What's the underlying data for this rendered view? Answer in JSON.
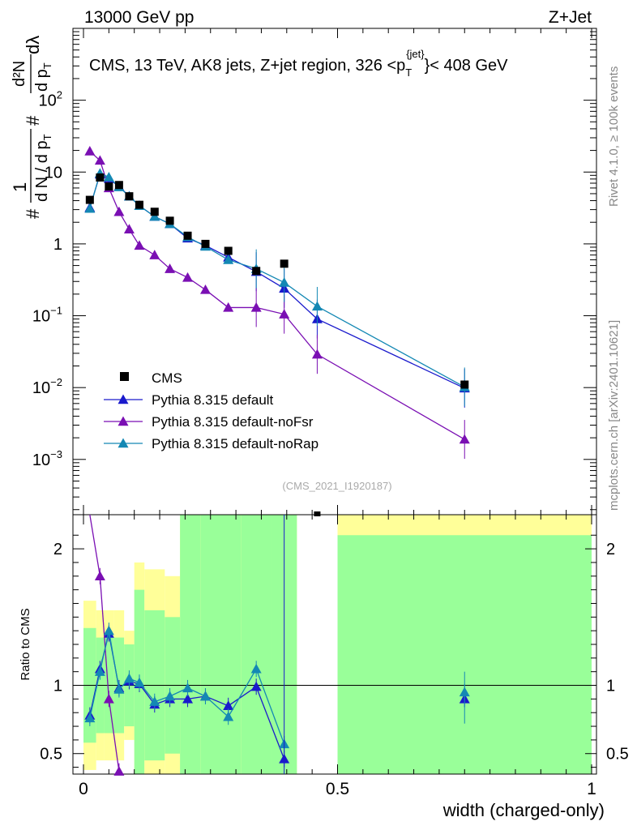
{
  "header": {
    "left": "13000 GeV pp",
    "right": "Z+Jet"
  },
  "colors": {
    "cms": "#000000",
    "default": "#1a1acc",
    "noFsr": "#7a0fb3",
    "noRap": "#1488b4",
    "band_green": "#99ff99",
    "band_yellow": "#ffff99"
  },
  "chart_data": {
    "type": "line",
    "title_main": "CMS, 13 TeV, AK8 jets, Z+jet region, 326 <p",
    "title_sub": "T",
    "title_sup": "{jet}",
    "title_end": "}< 408 GeV",
    "xlabel": "width (charged-only)",
    "ylabel_prefix": "# ",
    "ylabel_frac_num": "1",
    "ylabel_frac_den": "d N / d p",
    "ylabel_den_sub": "T",
    "ylabel_mid": " # ",
    "ylabel_d2_num": "d²N",
    "ylabel_d2_den": "d p",
    "ylabel_d2_den_sub": "T",
    "ylabel_d2_end": " dλ",
    "xlim": [
      0,
      1
    ],
    "ylim_log": [
      0.00017,
      1000
    ],
    "ratio_ylabel": "Ratio to CMS",
    "ratio_ylim": [
      0.35,
      2.25
    ],
    "x_ticks": [
      {
        "v": 0,
        "label": "0"
      },
      {
        "v": 0.5,
        "label": "0.5"
      },
      {
        "v": 1,
        "label": "1"
      }
    ],
    "y_ticks": [
      {
        "v": 100,
        "label": "10",
        "sup": "2"
      },
      {
        "v": 10,
        "label": "10",
        "sup": ""
      },
      {
        "v": 1,
        "label": "1",
        "sup": ""
      },
      {
        "v": 0.1,
        "label": "10",
        "sup": "−1"
      },
      {
        "v": 0.01,
        "label": "10",
        "sup": "−2"
      },
      {
        "v": 0.001,
        "label": "10",
        "sup": "−3"
      }
    ],
    "ratio_ticks": [
      {
        "v": 2,
        "label": "2"
      },
      {
        "v": 1,
        "label": "1"
      },
      {
        "v": 0.5,
        "label": "0.5"
      }
    ],
    "side_label_1": "Rivet 4.1.0, ≥ 100k events",
    "side_label_2": "mcplots.cern.ch [arXiv:2401.10621]",
    "analysis_id": "(CMS_2021_I1920187)",
    "cms": {
      "name": "CMS",
      "x": [
        0.0125,
        0.0325,
        0.05,
        0.07,
        0.09,
        0.11,
        0.14,
        0.17,
        0.205,
        0.24,
        0.285,
        0.34,
        0.395,
        0.75
      ],
      "y": [
        4.1,
        8.4,
        6.3,
        6.6,
        4.6,
        3.5,
        2.8,
        2.1,
        1.3,
        1.0,
        0.8,
        0.42,
        0.53,
        0.011
      ]
    },
    "bins": [
      0,
      0.025,
      0.04,
      0.06,
      0.08,
      0.1,
      0.12,
      0.16,
      0.19,
      0.23,
      0.26,
      0.31,
      0.37,
      0.42,
      0.5,
      1.0
    ],
    "series": [
      {
        "key": "default",
        "name": "Pythia 8.315 default",
        "x": [
          0.0125,
          0.0325,
          0.05,
          0.07,
          0.09,
          0.11,
          0.14,
          0.17,
          0.205,
          0.24,
          0.285,
          0.34,
          0.395,
          0.46,
          0.75
        ],
        "y": [
          3.2,
          9.3,
          8.1,
          6.3,
          4.6,
          3.4,
          2.4,
          1.9,
          1.2,
          0.95,
          0.65,
          0.41,
          0.24,
          0.09,
          0.0098
        ],
        "ratio": [
          0.78,
          1.12,
          1.38,
          0.98,
          1.03,
          1.01,
          0.86,
          0.9,
          0.9,
          0.92,
          0.85,
          0.99,
          0.46,
          null,
          0.9
        ]
      },
      {
        "key": "noFsr",
        "name": "Pythia 8.315 default-noFsr",
        "x": [
          0.0125,
          0.0325,
          0.05,
          0.07,
          0.09,
          0.11,
          0.14,
          0.17,
          0.205,
          0.24,
          0.285,
          0.34,
          0.395,
          0.46,
          0.75
        ],
        "y": [
          19.5,
          14.5,
          6.0,
          2.8,
          1.6,
          0.95,
          0.7,
          0.45,
          0.34,
          0.23,
          0.13,
          0.13,
          0.105,
          0.029,
          0.0019
        ],
        "ratio": [
          4.8,
          1.8,
          0.9,
          0.37,
          null,
          null,
          null,
          null,
          null,
          null,
          null,
          null,
          null,
          null,
          null
        ]
      },
      {
        "key": "noRap",
        "name": "Pythia 8.315 default-noRap",
        "x": [
          0.0125,
          0.0325,
          0.05,
          0.07,
          0.09,
          0.11,
          0.14,
          0.17,
          0.205,
          0.24,
          0.285,
          0.34,
          0.395,
          0.46,
          0.75
        ],
        "y": [
          3.1,
          9.6,
          8.5,
          6.2,
          4.6,
          3.4,
          2.4,
          1.9,
          1.25,
          0.92,
          0.6,
          0.45,
          0.29,
          0.135,
          0.0102
        ],
        "ratio": [
          0.76,
          1.1,
          1.4,
          0.97,
          1.05,
          1.02,
          0.88,
          0.92,
          0.98,
          0.92,
          0.77,
          1.12,
          0.57,
          null,
          0.95
        ]
      }
    ]
  }
}
